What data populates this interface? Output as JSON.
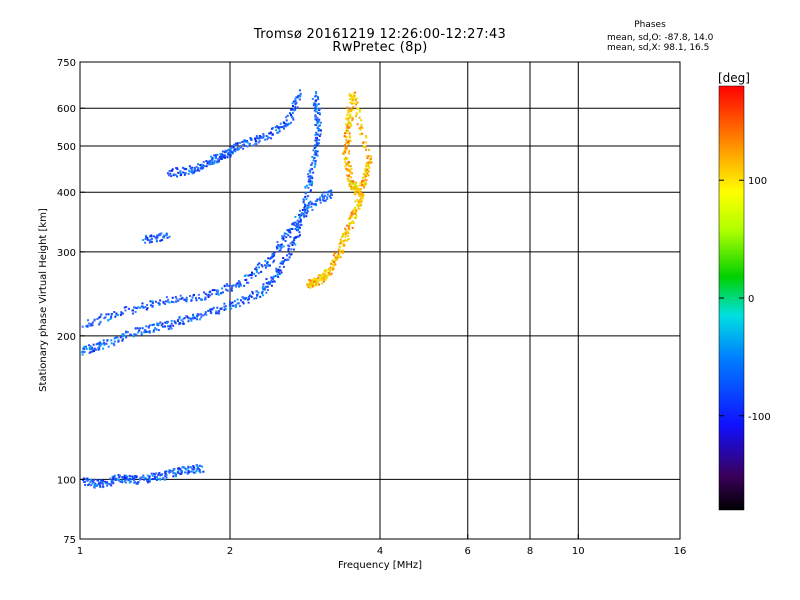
{
  "header": {
    "title_line1": "Tromsø 20161219 12:26:00-12:27:43",
    "title_line2": "RwPretec (8p)",
    "stats_title": "Phases",
    "stats_o": "mean, sd,O: -87.8, 14.0",
    "stats_x": "mean, sd,X:  98.1, 16.5"
  },
  "chart_data": {
    "type": "scatter",
    "xlabel": "Frequency [MHz]",
    "ylabel": "Stationary phase Virtual Height [km]",
    "x_scale": "log2",
    "y_scale": "log",
    "xlim": [
      1,
      16
    ],
    "ylim": [
      75,
      750
    ],
    "x_ticks": [
      1,
      2,
      4,
      6,
      8,
      10,
      16
    ],
    "y_ticks": [
      75,
      100,
      200,
      300,
      400,
      500,
      600,
      750
    ],
    "x_grid": [
      2,
      4,
      6,
      8,
      10
    ],
    "y_grid": [
      100,
      200,
      300,
      400,
      500,
      600
    ],
    "colorbar": {
      "label": "[deg]",
      "range": [
        -180,
        180
      ],
      "ticks": [
        100,
        0,
        -100
      ]
    },
    "series": [
      {
        "name": "O",
        "color_hint": "blue",
        "points": [
          [
            1.0,
            100
          ],
          [
            1.1,
            98
          ],
          [
            1.2,
            101
          ],
          [
            1.3,
            100
          ],
          [
            1.45,
            102
          ],
          [
            1.6,
            105
          ],
          [
            1.75,
            106
          ],
          [
            1.0,
            186
          ],
          [
            1.1,
            192
          ],
          [
            1.3,
            205
          ],
          [
            1.5,
            212
          ],
          [
            1.7,
            220
          ],
          [
            2.0,
            232
          ],
          [
            2.3,
            248
          ],
          [
            2.5,
            275
          ],
          [
            2.7,
            320
          ],
          [
            2.85,
            400
          ],
          [
            2.95,
            480
          ],
          [
            3.0,
            560
          ],
          [
            2.95,
            640
          ],
          [
            1.0,
            210
          ],
          [
            1.2,
            225
          ],
          [
            1.5,
            238
          ],
          [
            1.8,
            245
          ],
          [
            2.1,
            258
          ],
          [
            2.4,
            290
          ],
          [
            2.6,
            330
          ],
          [
            2.9,
            380
          ],
          [
            3.2,
            400
          ],
          [
            1.5,
            440
          ],
          [
            1.7,
            450
          ],
          [
            1.85,
            470
          ],
          [
            1.95,
            480
          ],
          [
            2.05,
            500
          ],
          [
            2.3,
            520
          ],
          [
            2.6,
            560
          ],
          [
            2.75,
            650
          ],
          [
            1.35,
            320
          ],
          [
            1.5,
            325
          ]
        ]
      },
      {
        "name": "X",
        "color_hint": "yellow-orange",
        "points": [
          [
            2.85,
            258
          ],
          [
            3.0,
            262
          ],
          [
            3.15,
            275
          ],
          [
            3.3,
            300
          ],
          [
            3.45,
            340
          ],
          [
            3.6,
            380
          ],
          [
            3.7,
            420
          ],
          [
            3.8,
            470
          ],
          [
            3.5,
            650
          ],
          [
            3.45,
            560
          ],
          [
            3.4,
            480
          ],
          [
            3.5,
            420
          ],
          [
            3.6,
            400
          ]
        ]
      }
    ]
  }
}
